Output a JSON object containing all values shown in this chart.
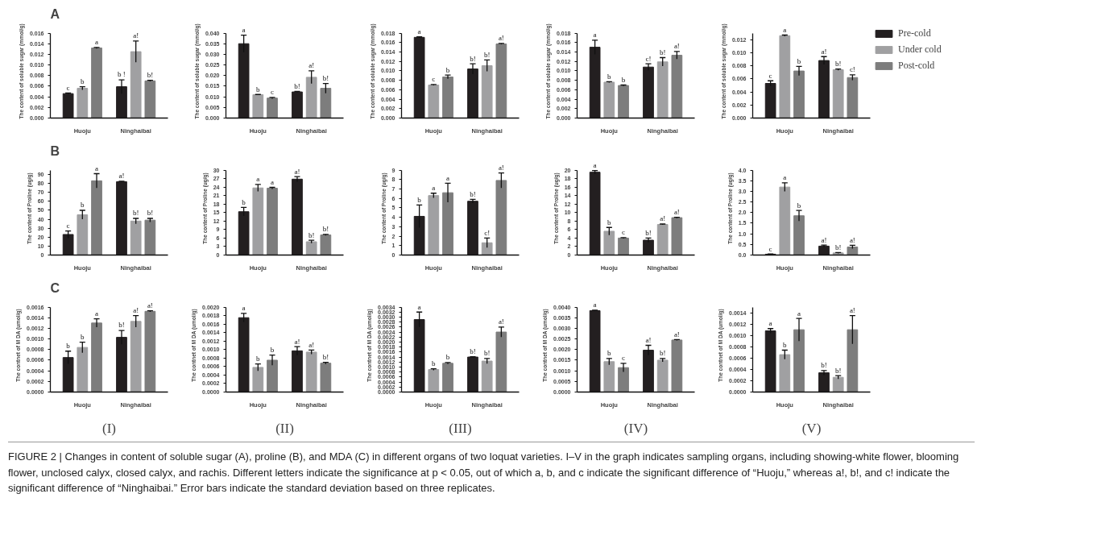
{
  "chart_data": [
    {
      "type": "bar",
      "title": "A",
      "categories": [
        "Huoju",
        "Ninghaibai"
      ],
      "ylabel": "The content of soluble sugar (mmol/g)",
      "ylim": [
        0,
        0.016
      ],
      "yticks": [
        {
          "value": 0,
          "label": "0.000"
        },
        {
          "value": 0.002,
          "label": "0.002"
        },
        {
          "value": 0.004,
          "label": "0.004"
        },
        {
          "value": 0.006,
          "label": "0.006"
        },
        {
          "value": 0.008,
          "label": "0.008"
        },
        {
          "value": 0.01,
          "label": "0.010"
        },
        {
          "value": 0.012,
          "label": "0.012"
        },
        {
          "value": 0.014,
          "label": "0.014"
        },
        {
          "value": 0.016,
          "label": "0.016"
        }
      ],
      "series": [
        {
          "color": "#231f20",
          "values": [
            0.0046,
            0.0059
          ],
          "errors": [
            0.0001,
            0.0013
          ],
          "value_labels": [
            "c",
            "b !"
          ]
        },
        {
          "color": "#a0a0a2",
          "values": [
            0.0056,
            0.0125
          ],
          "errors": [
            0.0003,
            0.002
          ],
          "value_labels": [
            "b",
            "a!"
          ]
        },
        {
          "color": "#7d7d7d",
          "values": [
            0.0132,
            0.007
          ],
          "errors": [
            0.0001,
            0.0001
          ],
          "value_labels": [
            "a",
            "b!"
          ]
        }
      ]
    },
    {
      "type": "bar",
      "categories": [
        "Huoju",
        "Ninghaibai"
      ],
      "ylabel": "The content of soluble sugar (mmol/g)",
      "ylim": [
        0,
        0.04
      ],
      "yticks": [
        {
          "value": 0,
          "label": "0.000"
        },
        {
          "value": 0.005,
          "label": "0.005"
        },
        {
          "value": 0.01,
          "label": "0.010"
        },
        {
          "value": 0.015,
          "label": "0.015"
        },
        {
          "value": 0.02,
          "label": "0.020"
        },
        {
          "value": 0.025,
          "label": "0.025"
        },
        {
          "value": 0.03,
          "label": "0.030"
        },
        {
          "value": 0.035,
          "label": "0.035"
        },
        {
          "value": 0.04,
          "label": "0.040"
        }
      ],
      "series": [
        {
          "color": "#231f20",
          "values": [
            0.035,
            0.0123
          ],
          "errors": [
            0.004,
            0.0003
          ],
          "value_labels": [
            "a",
            "b!"
          ]
        },
        {
          "color": "#a0a0a2",
          "values": [
            0.011,
            0.0192
          ],
          "errors": [
            0.0001,
            0.003
          ],
          "value_labels": [
            "b",
            "a!"
          ]
        },
        {
          "color": "#7d7d7d",
          "values": [
            0.0094,
            0.014
          ],
          "errors": [
            0.0003,
            0.0023
          ],
          "value_labels": [
            "c",
            "b!"
          ]
        }
      ]
    },
    {
      "type": "bar",
      "categories": [
        "Huoju",
        "Ninghaibai"
      ],
      "ylabel": "The content of soluble sugar (mmol/g)",
      "ylim": [
        0,
        0.018
      ],
      "yticks": [
        {
          "value": 0,
          "label": "0.000"
        },
        {
          "value": 0.002,
          "label": "0.002"
        },
        {
          "value": 0.004,
          "label": "0.004"
        },
        {
          "value": 0.006,
          "label": "0.006"
        },
        {
          "value": 0.008,
          "label": "0.008"
        },
        {
          "value": 0.01,
          "label": "0.010"
        },
        {
          "value": 0.012,
          "label": "0.012"
        },
        {
          "value": 0.014,
          "label": "0.014"
        },
        {
          "value": 0.016,
          "label": "0.016"
        },
        {
          "value": 0.018,
          "label": "0.018"
        }
      ],
      "series": [
        {
          "color": "#231f20",
          "values": [
            0.0171,
            0.0104
          ],
          "errors": [
            0.0001,
            0.0011
          ],
          "value_labels": [
            "a",
            "b!"
          ]
        },
        {
          "color": "#a0a0a2",
          "values": [
            0.007,
            0.0111
          ],
          "errors": [
            0.0001,
            0.0012
          ],
          "value_labels": [
            "c",
            "b!"
          ]
        },
        {
          "color": "#7d7d7d",
          "values": [
            0.0087,
            0.0157
          ],
          "errors": [
            0.0004,
            0.0001
          ],
          "value_labels": [
            "b",
            "a!"
          ]
        }
      ]
    },
    {
      "type": "bar",
      "categories": [
        "Huoju",
        "Ninghaibai"
      ],
      "ylabel": "The content of soluble sugar (mmol/g)",
      "ylim": [
        0,
        0.018
      ],
      "yticks": [
        {
          "value": 0,
          "label": "0.000"
        },
        {
          "value": 0.002,
          "label": "0.002"
        },
        {
          "value": 0.004,
          "label": "0.004"
        },
        {
          "value": 0.006,
          "label": "0.006"
        },
        {
          "value": 0.008,
          "label": "0.008"
        },
        {
          "value": 0.01,
          "label": "0.010"
        },
        {
          "value": 0.012,
          "label": "0.012"
        },
        {
          "value": 0.014,
          "label": "0.014"
        },
        {
          "value": 0.016,
          "label": "0.016"
        },
        {
          "value": 0.018,
          "label": "0.018"
        }
      ],
      "series": [
        {
          "color": "#231f20",
          "values": [
            0.015,
            0.0108
          ],
          "errors": [
            0.0015,
            0.0007
          ],
          "value_labels": [
            "a",
            "c!"
          ]
        },
        {
          "color": "#a0a0a2",
          "values": [
            0.0076,
            0.0119
          ],
          "errors": [
            0.0001,
            0.0009
          ],
          "value_labels": [
            "b",
            "b!"
          ]
        },
        {
          "color": "#7d7d7d",
          "values": [
            0.0069,
            0.0133
          ],
          "errors": [
            0.0001,
            0.0008
          ],
          "value_labels": [
            "b",
            "a!"
          ]
        }
      ]
    },
    {
      "type": "bar",
      "legend": "right",
      "categories": [
        "Huoju",
        "Ninghaibai"
      ],
      "ylabel": "The content of soluble sugar (mmol/g)",
      "ylim": [
        0,
        0.013
      ],
      "yticks": [
        {
          "value": 0,
          "label": "0.000"
        },
        {
          "value": 0.002,
          "label": "0.002"
        },
        {
          "value": 0.004,
          "label": "0.004"
        },
        {
          "value": 0.006,
          "label": "0.006"
        },
        {
          "value": 0.008,
          "label": "0.008"
        },
        {
          "value": 0.01,
          "label": "0.010"
        },
        {
          "value": 0.012,
          "label": "0.012"
        }
      ],
      "series": [
        {
          "name": "Pre-cold",
          "color": "#231f20",
          "values": [
            0.0053,
            0.0088
          ],
          "errors": [
            0.0004,
            0.0006
          ],
          "value_labels": [
            "c",
            "a!"
          ]
        },
        {
          "name": "Under cold",
          "color": "#a0a0a2",
          "values": [
            0.0126,
            0.0074
          ],
          "errors": [
            0.0001,
            0.0001
          ],
          "value_labels": [
            "a",
            "b!"
          ]
        },
        {
          "name": "Post-cold",
          "color": "#7d7d7d",
          "values": [
            0.0072,
            0.0062
          ],
          "errors": [
            0.0007,
            0.0004
          ],
          "value_labels": [
            "b",
            "c!"
          ]
        }
      ]
    },
    {
      "type": "bar",
      "title": "B",
      "categories": [
        "Huoju",
        "Ninghaibai"
      ],
      "ylabel": "The content of Proline (ug/g)",
      "ylim": [
        0,
        95
      ],
      "yticks": [
        0,
        10,
        20,
        30,
        40,
        50,
        60,
        70,
        80,
        90
      ],
      "series": [
        {
          "color": "#231f20",
          "values": [
            23,
            82
          ],
          "errors": [
            4,
            0.5
          ],
          "value_labels": [
            "c",
            "a!"
          ]
        },
        {
          "color": "#a0a0a2",
          "values": [
            45,
            38
          ],
          "errors": [
            5,
            3
          ],
          "value_labels": [
            "b",
            "b!"
          ]
        },
        {
          "color": "#7d7d7d",
          "values": [
            83,
            39
          ],
          "errors": [
            8,
            2
          ],
          "value_labels": [
            "a",
            "b!"
          ]
        }
      ]
    },
    {
      "type": "bar",
      "categories": [
        "Huoju",
        "Ninghaibai"
      ],
      "ylabel": "The content of Proline (ug/g)",
      "ylim": [
        0,
        30
      ],
      "yticks": [
        0,
        3,
        6,
        9,
        12,
        15,
        18,
        21,
        24,
        27,
        30
      ],
      "series": [
        {
          "color": "#231f20",
          "values": [
            15.3,
            26.8
          ],
          "errors": [
            1.5,
            0.9
          ],
          "value_labels": [
            "b",
            "a!"
          ]
        },
        {
          "color": "#a0a0a2",
          "values": [
            23.7,
            4.7
          ],
          "errors": [
            1.2,
            0.5
          ],
          "value_labels": [
            "a",
            "b!"
          ]
        },
        {
          "color": "#7d7d7d",
          "values": [
            23.6,
            7.1
          ],
          "errors": [
            0.3,
            0.2
          ],
          "value_labels": [
            "a",
            "b!"
          ]
        }
      ]
    },
    {
      "type": "bar",
      "categories": [
        "Huoju",
        "Ninghaibai"
      ],
      "ylabel": "The content of Proline (ug/g)",
      "ylim": [
        0,
        9
      ],
      "yticks": [
        0,
        1,
        2,
        3,
        4,
        5,
        6,
        7,
        8,
        9
      ],
      "series": [
        {
          "color": "#231f20",
          "values": [
            4.1,
            5.7
          ],
          "errors": [
            1.2,
            0.2
          ],
          "value_labels": [
            "b",
            "b!"
          ]
        },
        {
          "color": "#a0a0a2",
          "values": [
            6.3,
            1.3
          ],
          "errors": [
            0.25,
            0.5
          ],
          "value_labels": [
            "a",
            "c!"
          ]
        },
        {
          "color": "#7d7d7d",
          "values": [
            6.6,
            7.9
          ],
          "errors": [
            1.0,
            0.8
          ],
          "value_labels": [
            "a",
            "a!"
          ]
        }
      ]
    },
    {
      "type": "bar",
      "categories": [
        "Huoju",
        "Ninghaibai"
      ],
      "ylabel": "The content of Proline (ug/g)",
      "ylim": [
        0,
        20
      ],
      "yticks": [
        0,
        2,
        4,
        6,
        8,
        10,
        12,
        14,
        16,
        18,
        20
      ],
      "series": [
        {
          "color": "#231f20",
          "values": [
            19.5,
            3.5
          ],
          "errors": [
            0.4,
            0.5
          ],
          "value_labels": [
            "a",
            "b!"
          ]
        },
        {
          "color": "#a0a0a2",
          "values": [
            5.6,
            7.2
          ],
          "errors": [
            0.9,
            0.1
          ],
          "value_labels": [
            "b",
            "a!"
          ]
        },
        {
          "color": "#7d7d7d",
          "values": [
            4.0,
            8.8
          ],
          "errors": [
            0.1,
            0.1
          ],
          "value_labels": [
            "c",
            "a!"
          ]
        }
      ]
    },
    {
      "type": "bar",
      "categories": [
        "Huoju",
        "Ninghaibai"
      ],
      "ylabel": "The content of Proline (ug/g)",
      "ylim": [
        0,
        4
      ],
      "yticks": [
        {
          "value": 0,
          "label": "0.0"
        },
        {
          "value": 0.5,
          "label": "0.5"
        },
        {
          "value": 1,
          "label": "1.0"
        },
        {
          "value": 1.5,
          "label": "1.5"
        },
        {
          "value": 2,
          "label": "2.0"
        },
        {
          "value": 2.5,
          "label": "2.5"
        },
        {
          "value": 3,
          "label": "3.0"
        },
        {
          "value": 3.5,
          "label": "3.5"
        },
        {
          "value": 4,
          "label": "4.0"
        }
      ],
      "series": [
        {
          "color": "#231f20",
          "values": [
            0.04,
            0.42
          ],
          "errors": [
            0.01,
            0.05
          ],
          "value_labels": [
            "c",
            "a!"
          ]
        },
        {
          "color": "#a0a0a2",
          "values": [
            3.2,
            0.1
          ],
          "errors": [
            0.2,
            0.02
          ],
          "value_labels": [
            "a",
            "b!"
          ]
        },
        {
          "color": "#7d7d7d",
          "values": [
            1.85,
            0.38
          ],
          "errors": [
            0.25,
            0.08
          ],
          "value_labels": [
            "b",
            "a!"
          ]
        }
      ]
    },
    {
      "type": "bar",
      "title": "C",
      "xlabel": "(I)",
      "categories": [
        "Huoju",
        "Ninghaibai"
      ],
      "ylabel": "The contnet of M DA (umol/g)",
      "ylim": [
        0,
        0.0016
      ],
      "yticks": [
        {
          "value": 0,
          "label": "0.0000"
        },
        {
          "value": 0.0002,
          "label": "0.0002"
        },
        {
          "value": 0.0004,
          "label": "0.0004"
        },
        {
          "value": 0.0006,
          "label": "0.0006"
        },
        {
          "value": 0.0008,
          "label": "0.0008"
        },
        {
          "value": 0.001,
          "label": "0.0010"
        },
        {
          "value": 0.0012,
          "label": "0.0012"
        },
        {
          "value": 0.0014,
          "label": "0.0014"
        },
        {
          "value": 0.0016,
          "label": "0.0016"
        }
      ],
      "series": [
        {
          "color": "#231f20",
          "values": [
            0.00065,
            0.00103
          ],
          "errors": [
            0.00012,
            0.00013
          ],
          "value_labels": [
            "b",
            "b!"
          ]
        },
        {
          "color": "#a0a0a2",
          "values": [
            0.00084,
            0.00133
          ],
          "errors": [
            0.0001,
            0.00011
          ],
          "value_labels": [
            "b",
            "a!"
          ]
        },
        {
          "color": "#7d7d7d",
          "values": [
            0.0013,
            0.00152
          ],
          "errors": [
            8e-05,
            1e-05
          ],
          "value_labels": [
            "a",
            "a!"
          ]
        }
      ]
    },
    {
      "type": "bar",
      "xlabel": "(II)",
      "categories": [
        "Huoju",
        "Ninghaibai"
      ],
      "ylabel": "The contnet of M DA (umol/g)",
      "ylim": [
        0,
        0.002
      ],
      "yticks": [
        {
          "value": 0,
          "label": "0.0000"
        },
        {
          "value": 0.0002,
          "label": "0.0002"
        },
        {
          "value": 0.0004,
          "label": "0.0004"
        },
        {
          "value": 0.0006,
          "label": "0.0006"
        },
        {
          "value": 0.0008,
          "label": "0.0008"
        },
        {
          "value": 0.001,
          "label": "0.0010"
        },
        {
          "value": 0.0012,
          "label": "0.0012"
        },
        {
          "value": 0.0014,
          "label": "0.0014"
        },
        {
          "value": 0.0016,
          "label": "0.0016"
        },
        {
          "value": 0.0018,
          "label": "0.0018"
        },
        {
          "value": 0.002,
          "label": "0.0020"
        }
      ],
      "series": [
        {
          "color": "#231f20",
          "values": [
            0.00175,
            0.00097
          ],
          "errors": [
            0.0001,
            0.0001
          ],
          "value_labels": [
            "a",
            "a!"
          ]
        },
        {
          "color": "#a0a0a2",
          "values": [
            0.00058,
            0.00094
          ],
          "errors": [
            8e-05,
            5e-05
          ],
          "value_labels": [
            "b",
            "a!"
          ]
        },
        {
          "color": "#7d7d7d",
          "values": [
            0.00075,
            0.00068
          ],
          "errors": [
            0.00012,
            2e-05
          ],
          "value_labels": [
            "b",
            "b!"
          ]
        }
      ]
    },
    {
      "type": "bar",
      "xlabel": "(III)",
      "categories": [
        "Huoju",
        "Ninghaibai"
      ],
      "ylabel": "The contnet of M DA (umol/g)",
      "ylim": [
        0,
        0.0034
      ],
      "yticks": [
        {
          "value": 0,
          "label": "0.0000"
        },
        {
          "value": 0.0002,
          "label": "0.0002"
        },
        {
          "value": 0.0004,
          "label": "0.0004"
        },
        {
          "value": 0.0006,
          "label": "0.0006"
        },
        {
          "value": 0.0008,
          "label": "0.0008"
        },
        {
          "value": 0.001,
          "label": "0.0010"
        },
        {
          "value": 0.0012,
          "label": "0.0012"
        },
        {
          "value": 0.0014,
          "label": "0.0014"
        },
        {
          "value": 0.0016,
          "label": "0.0016"
        },
        {
          "value": 0.0018,
          "label": "0.0018"
        },
        {
          "value": 0.002,
          "label": "0.0020"
        },
        {
          "value": 0.0022,
          "label": "0.0022"
        },
        {
          "value": 0.0024,
          "label": "0.0024"
        },
        {
          "value": 0.0026,
          "label": "0.0026"
        },
        {
          "value": 0.0028,
          "label": "0.0028"
        },
        {
          "value": 0.003,
          "label": "0.0030"
        },
        {
          "value": 0.0032,
          "label": "0.0032"
        },
        {
          "value": 0.0034,
          "label": "0.0034"
        }
      ],
      "series": [
        {
          "color": "#231f20",
          "values": [
            0.0029,
            0.0014
          ],
          "errors": [
            0.0003,
            1e-05
          ],
          "value_labels": [
            "a",
            "b!"
          ]
        },
        {
          "color": "#a0a0a2",
          "values": [
            0.0009,
            0.00124
          ],
          "errors": [
            3e-05,
            0.0001
          ],
          "value_labels": [
            "b",
            "b!"
          ]
        },
        {
          "color": "#7d7d7d",
          "values": [
            0.00115,
            0.0024
          ],
          "errors": [
            3e-05,
            0.0002
          ],
          "value_labels": [
            "b",
            "a!"
          ]
        }
      ]
    },
    {
      "type": "bar",
      "xlabel": "(IV)",
      "categories": [
        "Huoju",
        "Ninghaibai"
      ],
      "ylabel": "The contnet of M DA (umol/g)",
      "ylim": [
        0,
        0.004
      ],
      "yticks": [
        {
          "value": 0,
          "label": "0.0000"
        },
        {
          "value": 0.0005,
          "label": "0.0005"
        },
        {
          "value": 0.001,
          "label": "0.0010"
        },
        {
          "value": 0.0015,
          "label": "0.0015"
        },
        {
          "value": 0.002,
          "label": "0.0020"
        },
        {
          "value": 0.0025,
          "label": "0.0025"
        },
        {
          "value": 0.003,
          "label": "0.0030"
        },
        {
          "value": 0.0035,
          "label": "0.0035"
        },
        {
          "value": 0.004,
          "label": "0.0040"
        }
      ],
      "series": [
        {
          "color": "#231f20",
          "values": [
            0.00383,
            0.00197
          ],
          "errors": [
            2e-05,
            0.00023
          ],
          "value_labels": [
            "a",
            "a!"
          ]
        },
        {
          "color": "#a0a0a2",
          "values": [
            0.00143,
            0.0015
          ],
          "errors": [
            0.00015,
            8e-05
          ],
          "value_labels": [
            "b",
            "b!"
          ]
        },
        {
          "color": "#7d7d7d",
          "values": [
            0.00115,
            0.00245
          ],
          "errors": [
            0.0002,
            2e-05
          ],
          "value_labels": [
            "c",
            "a!"
          ]
        }
      ]
    },
    {
      "type": "bar",
      "xlabel": "(V)",
      "categories": [
        "Huoju",
        "Ninghaibai"
      ],
      "ylabel": "The contnet of M DA (umol/g)",
      "ylim": [
        0,
        0.0015
      ],
      "yticks": [
        {
          "value": 0,
          "label": "0.0000"
        },
        {
          "value": 0.0002,
          "label": "0.0002"
        },
        {
          "value": 0.0004,
          "label": "0.0004"
        },
        {
          "value": 0.0006,
          "label": "0.0006"
        },
        {
          "value": 0.0008,
          "label": "0.0008"
        },
        {
          "value": 0.001,
          "label": "0.0010"
        },
        {
          "value": 0.0012,
          "label": "0.0012"
        },
        {
          "value": 0.0014,
          "label": "0.0014"
        }
      ],
      "series": [
        {
          "color": "#231f20",
          "values": [
            0.00108,
            0.00034
          ],
          "errors": [
            4e-05,
            4e-05
          ],
          "value_labels": [
            "a",
            "b!"
          ]
        },
        {
          "color": "#a0a0a2",
          "values": [
            0.00066,
            0.00026
          ],
          "errors": [
            8e-05,
            3e-05
          ],
          "value_labels": [
            "b",
            "b!"
          ]
        },
        {
          "color": "#7d7d7d",
          "values": [
            0.0011,
            0.0011
          ],
          "errors": [
            0.0002,
            0.00025
          ],
          "value_labels": [
            "a",
            "a!"
          ]
        }
      ],
      "annotations": [
        "FIGURE 2 | Changes in content of soluble sugar (A), proline (B), and MDA (C) in different organs of two loquat varieties. I–V in the graph indicates sampling organs, including showing-white flower, blooming flower, unclosed calyx, closed calyx, and rachis. Different letters indicate the significance at p < 0.05, out of which a, b, and c indicate the significant difference of “Huoju,” whereas a!, b!, and c! indicate the significant difference of “Ninghaibai.” Error bars indicate the standard deviation based on three replicates."
      ]
    }
  ]
}
